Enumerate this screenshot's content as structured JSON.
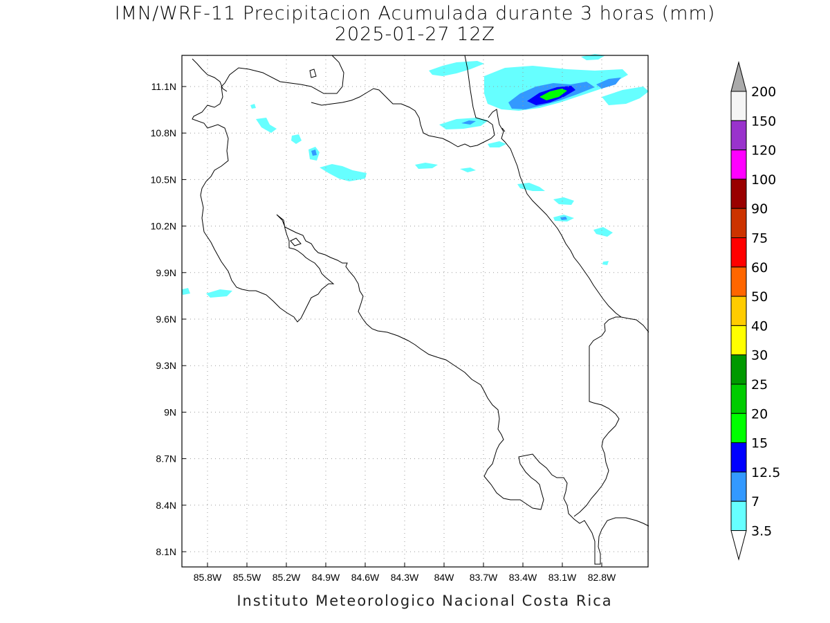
{
  "title": {
    "line1": "IMN/WRF-11 Precipitacion Acumulada durante 3 horas (mm)",
    "line2": "2025-01-27 12Z"
  },
  "footer": "Instituto Meteorologico Nacional Costa Rica",
  "map": {
    "lon_range": [
      -86.0,
      -82.6
    ],
    "lat_range": [
      8.0,
      11.3
    ],
    "lon_ticks": [
      {
        "value": -85.8,
        "label": "85.8W"
      },
      {
        "value": -85.5,
        "label": "85.5W"
      },
      {
        "value": -85.2,
        "label": "85.2W"
      },
      {
        "value": -84.9,
        "label": "84.9W"
      },
      {
        "value": -84.6,
        "label": "84.6W"
      },
      {
        "value": -84.3,
        "label": "84.3W"
      },
      {
        "value": -84.0,
        "label": "84W"
      },
      {
        "value": -83.7,
        "label": "83.7W"
      },
      {
        "value": -83.4,
        "label": "83.4W"
      },
      {
        "value": -83.1,
        "label": "83.1W"
      },
      {
        "value": -82.8,
        "label": "82.8W"
      }
    ],
    "lat_ticks": [
      {
        "value": 8.1,
        "label": "8.1N"
      },
      {
        "value": 8.4,
        "label": "8.4N"
      },
      {
        "value": 8.7,
        "label": "8.7N"
      },
      {
        "value": 9.0,
        "label": "9N"
      },
      {
        "value": 9.3,
        "label": "9.3N"
      },
      {
        "value": 9.6,
        "label": "9.6N"
      },
      {
        "value": 9.9,
        "label": "9.9N"
      },
      {
        "value": 10.2,
        "label": "10.2N"
      },
      {
        "value": 10.5,
        "label": "10.5N"
      },
      {
        "value": 10.8,
        "label": "10.8N"
      },
      {
        "value": 11.1,
        "label": "11.1N"
      }
    ],
    "grid": true
  },
  "colorbar": {
    "levels": [
      {
        "label": "200",
        "color": "#aaaaaa"
      },
      {
        "label": "150",
        "color": "#f5f5f5"
      },
      {
        "label": "120",
        "color": "#9933cc"
      },
      {
        "label": "100",
        "color": "#ff00ff"
      },
      {
        "label": "90",
        "color": "#990000"
      },
      {
        "label": "75",
        "color": "#cc3300"
      },
      {
        "label": "60",
        "color": "#ff0000"
      },
      {
        "label": "50",
        "color": "#ff6600"
      },
      {
        "label": "40",
        "color": "#ffcc00"
      },
      {
        "label": "30",
        "color": "#ffff00"
      },
      {
        "label": "25",
        "color": "#009900"
      },
      {
        "label": "20",
        "color": "#00cc00"
      },
      {
        "label": "15",
        "color": "#00ff00"
      },
      {
        "label": "12.5",
        "color": "#0000ff"
      },
      {
        "label": "7",
        "color": "#3399ff"
      },
      {
        "label": "3.5",
        "color": "#66ffff"
      }
    ],
    "bottom_color": "#ffffff"
  },
  "colors": {
    "light_precip": "#66ffff",
    "mid_precip": "#3399ff",
    "heavy_precip": "#0000ff",
    "peak_precip": "#00ff00",
    "coastline": "#000000"
  }
}
